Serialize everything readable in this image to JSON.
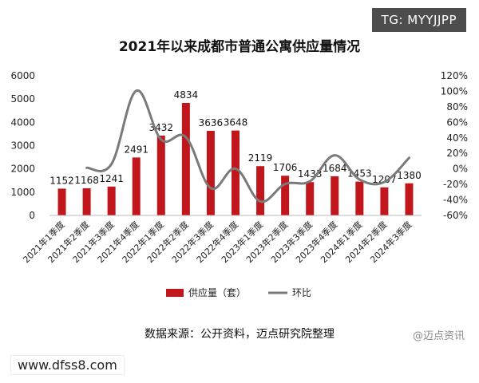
{
  "watermark_tag": "TG: MYYJJPP",
  "source_note": "数据来源：公开资料，迈点研究院整理",
  "brand_mark": "@迈点资讯",
  "site_url": "www.dfss8.com",
  "chart_data": {
    "type": "bar",
    "title": "2021年以来成都市普通公寓供应量情况",
    "categories": [
      "2021年1季度",
      "2021年2季度",
      "2021年3季度",
      "2021年4季度",
      "2022年1季度",
      "2022年2季度",
      "2022年3季度",
      "2022年4季度",
      "2023年1季度",
      "2023年2季度",
      "2023年3季度",
      "2023年4季度",
      "2024年1季度",
      "2024年2季度",
      "2024年3季度"
    ],
    "series": [
      {
        "name": "供应量（套）",
        "type": "bar",
        "axis": "left",
        "color": "#c0161c",
        "values": [
          1152,
          1168,
          1241,
          2491,
          3432,
          4834,
          3636,
          3648,
          2119,
          1706,
          1433,
          1684,
          1453,
          1207,
          1380
        ]
      },
      {
        "name": "环比",
        "type": "line",
        "axis": "right",
        "color": "#7a7a7a",
        "values": [
          null,
          1.4,
          6.3,
          100.7,
          37.8,
          40.9,
          -24.8,
          0.3,
          -41.9,
          -19.5,
          -16.0,
          17.5,
          -13.7,
          -16.9,
          14.3
        ]
      }
    ],
    "y_left": {
      "min": 0,
      "max": 6000,
      "ticks": [
        0,
        1000,
        2000,
        3000,
        4000,
        5000,
        6000
      ]
    },
    "y_right": {
      "min": -60,
      "max": 120,
      "ticks": [
        "-60%",
        "-40%",
        "-20%",
        "0%",
        "20%",
        "40%",
        "60%",
        "80%",
        "100%",
        "120%"
      ]
    },
    "legend_position": "bottom",
    "grid": false
  }
}
